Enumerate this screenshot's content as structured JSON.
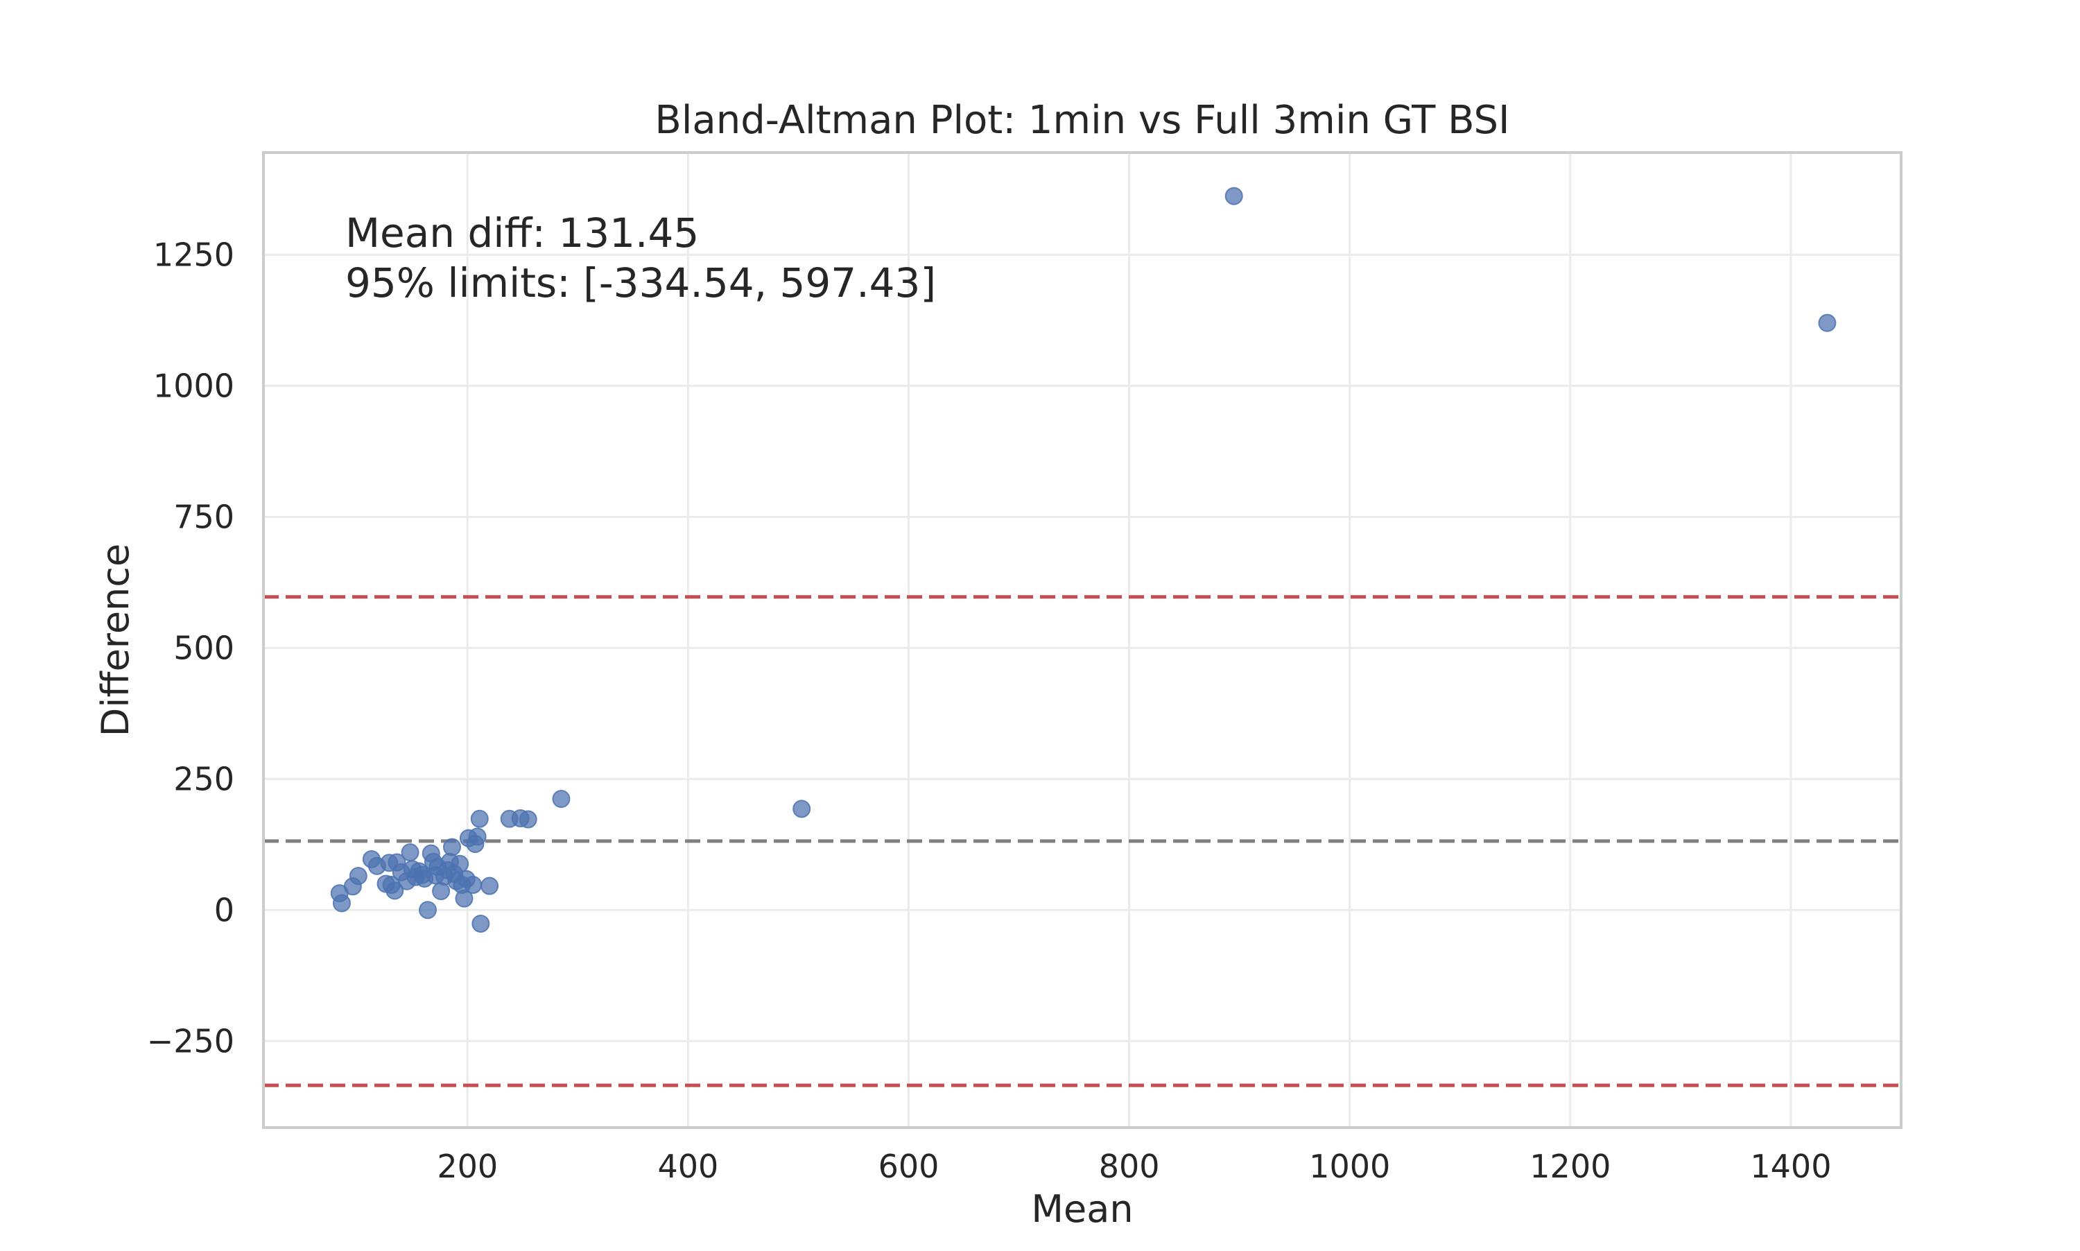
{
  "chart_data": {
    "type": "scatter",
    "title": "Bland-Altman Plot: 1min vs Full 3min GT BSI",
    "xlabel": "Mean",
    "ylabel": "Difference",
    "xlim": [
      15,
      1500
    ],
    "ylim": [
      -415,
      1445
    ],
    "x_ticks": [
      200,
      400,
      600,
      800,
      1000,
      1200,
      1400
    ],
    "y_ticks": [
      -250,
      0,
      250,
      500,
      750,
      1000,
      1250
    ],
    "x_tick_labels": [
      "200",
      "400",
      "600",
      "800",
      "1000",
      "1200",
      "1400"
    ],
    "y_tick_labels": [
      "−250",
      "0",
      "250",
      "500",
      "750",
      "1000",
      "1250"
    ],
    "grid": true,
    "annotations": [
      "Mean diff: 131.45",
      "95% limits: [-334.54, 597.43]"
    ],
    "mean_diff": 131.45,
    "lower_limit": -334.54,
    "upper_limit": 597.43,
    "colors": {
      "points": "#4c72b0",
      "mean_line": "#808080",
      "limit_lines": "#c44e52",
      "grid": "#ebebeb",
      "frame": "#cccccc"
    },
    "series": [
      {
        "points": [
          [
            84,
            32
          ],
          [
            86,
            13
          ],
          [
            96,
            45
          ],
          [
            101,
            65
          ],
          [
            113,
            97
          ],
          [
            118,
            84
          ],
          [
            126,
            50
          ],
          [
            129,
            90
          ],
          [
            131,
            48
          ],
          [
            134,
            37
          ],
          [
            136,
            91
          ],
          [
            140,
            72
          ],
          [
            145,
            55
          ],
          [
            148,
            110
          ],
          [
            150,
            78
          ],
          [
            153,
            63
          ],
          [
            156,
            74
          ],
          [
            159,
            67
          ],
          [
            161,
            60
          ],
          [
            164,
            0
          ],
          [
            167,
            108
          ],
          [
            169,
            92
          ],
          [
            171,
            66
          ],
          [
            173,
            82
          ],
          [
            176,
            36
          ],
          [
            179,
            64
          ],
          [
            182,
            76
          ],
          [
            184,
            92
          ],
          [
            186,
            120
          ],
          [
            188,
            69
          ],
          [
            190,
            55
          ],
          [
            193,
            88
          ],
          [
            195,
            48
          ],
          [
            197,
            22
          ],
          [
            199,
            59
          ],
          [
            201,
            137
          ],
          [
            205,
            48
          ],
          [
            207,
            126
          ],
          [
            209,
            140
          ],
          [
            211,
            174
          ],
          [
            212,
            -26
          ],
          [
            220,
            46
          ],
          [
            238,
            174
          ],
          [
            248,
            175
          ],
          [
            255,
            173
          ],
          [
            285,
            212
          ],
          [
            503,
            193
          ],
          [
            895,
            1362
          ],
          [
            1433,
            1120
          ]
        ]
      }
    ]
  }
}
